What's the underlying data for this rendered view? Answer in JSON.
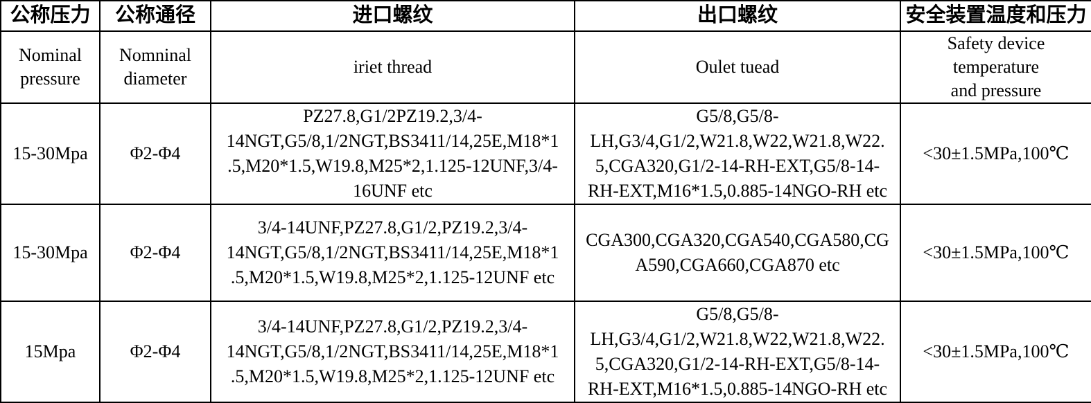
{
  "page": {
    "background_color": "#ffffff",
    "text_color": "#000000",
    "border_color": "#000000"
  },
  "table": {
    "columns": [
      {
        "zh": "公称压力",
        "en": "Nominal\npressure"
      },
      {
        "zh": "公称通径",
        "en": "Nomninal\ndiameter"
      },
      {
        "zh": "进口螺纹",
        "en": "iriet thread"
      },
      {
        "zh": "出口螺纹",
        "en": "Oulet tuead"
      },
      {
        "zh": "安全装置温度和压力",
        "en": "Safety device\ntemperature\nand pressure"
      }
    ],
    "rows": [
      {
        "pressure": "15-30Mpa",
        "diameter": "Φ2-Φ4",
        "inlet": "PZ27.8,G1/2PZ19.2,3/4-\n14NGT,G5/8,1/2NGT,BS3411/14,25E,M18*1\n.5,M20*1.5,W19.8,M25*2,1.125-12UNF,3/4-\n16UNF etc",
        "outlet": "G5/8,G5/8-\nLH,G3/4,G1/2,W21.8,W22,W21.8,W22.\n5,CGA320,G1/2-14-RH-EXT,G5/8-14-\nRH-EXT,M16*1.5,0.885-14NGO-RH etc",
        "safety": "<30±1.5MPa,100℃"
      },
      {
        "pressure": "15-30Mpa",
        "diameter": "Φ2-Φ4",
        "inlet": "3/4-14UNF,PZ27.8,G1/2,PZ19.2,3/4-\n14NGT,G5/8,1/2NGT,BS3411/14,25E,M18*1\n.5,M20*1.5,W19.8,M25*2,1.125-12UNF etc",
        "outlet": "CGA300,CGA320,CGA540,CGA580,CG\nA590,CGA660,CGA870 etc",
        "safety": "<30±1.5MPa,100℃"
      },
      {
        "pressure": "15Mpa",
        "diameter": "Φ2-Φ4",
        "inlet": "3/4-14UNF,PZ27.8,G1/2,PZ19.2,3/4-\n14NGT,G5/8,1/2NGT,BS3411/14,25E,M18*1\n.5,M20*1.5,W19.8,M25*2,1.125-12UNF etc",
        "outlet": "G5/8,G5/8-\nLH,G3/4,G1/2,W21.8,W22,W21.8,W22.\n5,CGA320,G1/2-14-RH-EXT,G5/8-14-\nRH-EXT,M16*1.5,0.885-14NGO-RH etc",
        "safety": "<30±1.5MPa,100℃"
      }
    ]
  }
}
